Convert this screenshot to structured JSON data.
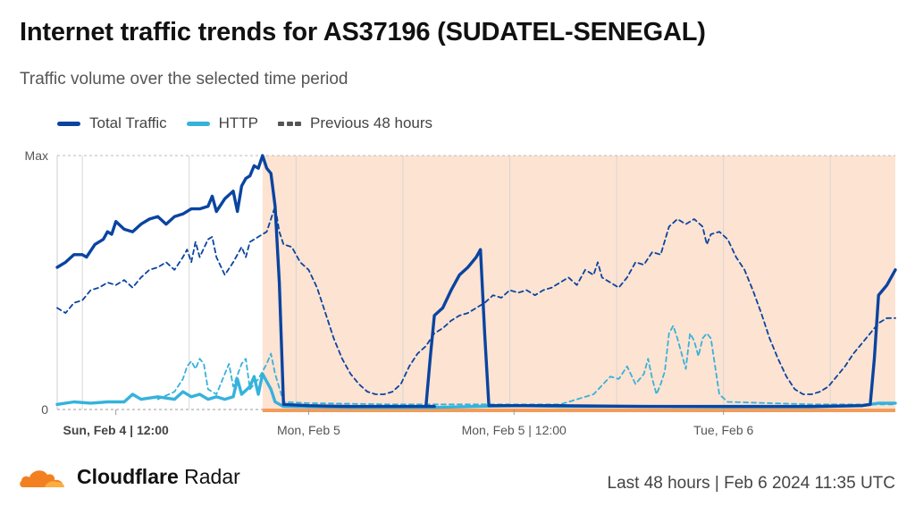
{
  "header": {
    "title": "Internet traffic trends for AS37196 (SUDATEL-SENEGAL)",
    "subtitle": "Traffic volume over the selected time period"
  },
  "footer": {
    "brand_bold": "Cloudflare",
    "brand_rest": " Radar",
    "timestamp": "Last 48 hours | Feb 6 2024 11:35 UTC"
  },
  "colors": {
    "total": "#0a44a0",
    "http": "#35b2dc",
    "previous": "#0a44a0",
    "highlight": "#fde3d2",
    "highlight_base": "#f39c5a"
  },
  "chart_data": {
    "type": "line",
    "y_ticks": [
      "Max",
      "0"
    ],
    "x_ticks": [
      {
        "label": "Sun, Feb 4 | 12:00",
        "bold": true,
        "t": 0.07
      },
      {
        "label": "Mon, Feb 5",
        "bold": false,
        "t": 0.3
      },
      {
        "label": "Mon, Feb 5 | 12:00",
        "bold": false,
        "t": 0.545
      },
      {
        "label": "Tue, Feb 6",
        "bold": false,
        "t": 0.795
      }
    ],
    "highlight_range": [
      0.245,
      1.0
    ],
    "ylim": [
      0,
      1
    ],
    "series": [
      {
        "name": "Total Traffic",
        "style": "solid",
        "points": [
          [
            0,
            0.56
          ],
          [
            0.01,
            0.58
          ],
          [
            0.02,
            0.61
          ],
          [
            0.03,
            0.61
          ],
          [
            0.035,
            0.6
          ],
          [
            0.045,
            0.65
          ],
          [
            0.055,
            0.67
          ],
          [
            0.06,
            0.7
          ],
          [
            0.065,
            0.69
          ],
          [
            0.07,
            0.74
          ],
          [
            0.08,
            0.71
          ],
          [
            0.09,
            0.7
          ],
          [
            0.1,
            0.73
          ],
          [
            0.11,
            0.75
          ],
          [
            0.12,
            0.76
          ],
          [
            0.13,
            0.73
          ],
          [
            0.14,
            0.76
          ],
          [
            0.15,
            0.77
          ],
          [
            0.16,
            0.79
          ],
          [
            0.17,
            0.79
          ],
          [
            0.18,
            0.8
          ],
          [
            0.185,
            0.84
          ],
          [
            0.19,
            0.78
          ],
          [
            0.2,
            0.83
          ],
          [
            0.21,
            0.86
          ],
          [
            0.215,
            0.78
          ],
          [
            0.22,
            0.88
          ],
          [
            0.225,
            0.91
          ],
          [
            0.23,
            0.92
          ],
          [
            0.235,
            0.96
          ],
          [
            0.24,
            0.95
          ],
          [
            0.245,
            1.0
          ],
          [
            0.25,
            0.95
          ],
          [
            0.255,
            0.93
          ],
          [
            0.26,
            0.8
          ],
          [
            0.265,
            0.5
          ],
          [
            0.27,
            0.02
          ],
          [
            0.3,
            0.015
          ],
          [
            0.35,
            0.012
          ],
          [
            0.45,
            0.012
          ],
          [
            0.44,
            0.012
          ],
          [
            0.445,
            0.2
          ],
          [
            0.45,
            0.37
          ],
          [
            0.46,
            0.4
          ],
          [
            0.47,
            0.47
          ],
          [
            0.48,
            0.53
          ],
          [
            0.49,
            0.56
          ],
          [
            0.5,
            0.6
          ],
          [
            0.505,
            0.63
          ],
          [
            0.51,
            0.3
          ],
          [
            0.515,
            0.015
          ],
          [
            0.6,
            0.015
          ],
          [
            0.7,
            0.012
          ],
          [
            0.8,
            0.012
          ],
          [
            0.9,
            0.012
          ],
          [
            0.96,
            0.015
          ],
          [
            0.97,
            0.02
          ],
          [
            0.975,
            0.2
          ],
          [
            0.98,
            0.45
          ],
          [
            0.985,
            0.47
          ],
          [
            0.99,
            0.49
          ],
          [
            0.995,
            0.52
          ],
          [
            1.0,
            0.55
          ]
        ]
      },
      {
        "name": "HTTP",
        "style": "solid",
        "points": [
          [
            0,
            0.02
          ],
          [
            0.02,
            0.03
          ],
          [
            0.04,
            0.025
          ],
          [
            0.06,
            0.03
          ],
          [
            0.08,
            0.03
          ],
          [
            0.09,
            0.06
          ],
          [
            0.1,
            0.04
          ],
          [
            0.12,
            0.05
          ],
          [
            0.14,
            0.04
          ],
          [
            0.15,
            0.07
          ],
          [
            0.16,
            0.05
          ],
          [
            0.17,
            0.06
          ],
          [
            0.18,
            0.04
          ],
          [
            0.19,
            0.05
          ],
          [
            0.2,
            0.04
          ],
          [
            0.21,
            0.05
          ],
          [
            0.215,
            0.12
          ],
          [
            0.22,
            0.06
          ],
          [
            0.23,
            0.09
          ],
          [
            0.235,
            0.13
          ],
          [
            0.24,
            0.06
          ],
          [
            0.245,
            0.14
          ],
          [
            0.255,
            0.08
          ],
          [
            0.26,
            0.03
          ],
          [
            0.27,
            0.012
          ],
          [
            0.35,
            0.008
          ],
          [
            0.45,
            0.008
          ],
          [
            0.5,
            0.012
          ],
          [
            0.55,
            0.015
          ],
          [
            0.6,
            0.012
          ],
          [
            0.7,
            0.012
          ],
          [
            0.8,
            0.01
          ],
          [
            0.9,
            0.01
          ],
          [
            0.96,
            0.015
          ],
          [
            0.98,
            0.025
          ],
          [
            1.0,
            0.025
          ]
        ]
      },
      {
        "name": "Previous 48 hours",
        "style": "dashed",
        "points": [
          [
            0,
            0.4
          ],
          [
            0.01,
            0.38
          ],
          [
            0.02,
            0.42
          ],
          [
            0.03,
            0.43
          ],
          [
            0.04,
            0.47
          ],
          [
            0.05,
            0.48
          ],
          [
            0.06,
            0.5
          ],
          [
            0.07,
            0.49
          ],
          [
            0.08,
            0.51
          ],
          [
            0.09,
            0.48
          ],
          [
            0.1,
            0.52
          ],
          [
            0.11,
            0.55
          ],
          [
            0.12,
            0.56
          ],
          [
            0.13,
            0.58
          ],
          [
            0.14,
            0.55
          ],
          [
            0.15,
            0.6
          ],
          [
            0.155,
            0.63
          ],
          [
            0.16,
            0.58
          ],
          [
            0.165,
            0.66
          ],
          [
            0.17,
            0.6
          ],
          [
            0.18,
            0.67
          ],
          [
            0.185,
            0.68
          ],
          [
            0.19,
            0.6
          ],
          [
            0.2,
            0.53
          ],
          [
            0.21,
            0.58
          ],
          [
            0.22,
            0.64
          ],
          [
            0.225,
            0.6
          ],
          [
            0.23,
            0.66
          ],
          [
            0.24,
            0.68
          ],
          [
            0.25,
            0.7
          ],
          [
            0.255,
            0.75
          ],
          [
            0.26,
            0.8
          ],
          [
            0.265,
            0.7
          ],
          [
            0.27,
            0.65
          ],
          [
            0.28,
            0.64
          ],
          [
            0.29,
            0.58
          ],
          [
            0.3,
            0.55
          ],
          [
            0.31,
            0.48
          ],
          [
            0.32,
            0.38
          ],
          [
            0.33,
            0.28
          ],
          [
            0.34,
            0.2
          ],
          [
            0.35,
            0.14
          ],
          [
            0.36,
            0.1
          ],
          [
            0.37,
            0.07
          ],
          [
            0.38,
            0.06
          ],
          [
            0.39,
            0.06
          ],
          [
            0.4,
            0.07
          ],
          [
            0.41,
            0.1
          ],
          [
            0.42,
            0.17
          ],
          [
            0.43,
            0.22
          ],
          [
            0.44,
            0.25
          ],
          [
            0.45,
            0.3
          ],
          [
            0.46,
            0.32
          ],
          [
            0.47,
            0.35
          ],
          [
            0.48,
            0.37
          ],
          [
            0.49,
            0.38
          ],
          [
            0.5,
            0.4
          ],
          [
            0.51,
            0.42
          ],
          [
            0.52,
            0.45
          ],
          [
            0.53,
            0.44
          ],
          [
            0.54,
            0.47
          ],
          [
            0.55,
            0.46
          ],
          [
            0.56,
            0.47
          ],
          [
            0.57,
            0.45
          ],
          [
            0.58,
            0.47
          ],
          [
            0.59,
            0.48
          ],
          [
            0.6,
            0.5
          ],
          [
            0.61,
            0.52
          ],
          [
            0.62,
            0.49
          ],
          [
            0.63,
            0.55
          ],
          [
            0.64,
            0.53
          ],
          [
            0.645,
            0.58
          ],
          [
            0.65,
            0.52
          ],
          [
            0.66,
            0.5
          ],
          [
            0.67,
            0.48
          ],
          [
            0.68,
            0.52
          ],
          [
            0.69,
            0.58
          ],
          [
            0.7,
            0.57
          ],
          [
            0.71,
            0.62
          ],
          [
            0.72,
            0.61
          ],
          [
            0.73,
            0.72
          ],
          [
            0.74,
            0.75
          ],
          [
            0.75,
            0.73
          ],
          [
            0.76,
            0.75
          ],
          [
            0.77,
            0.72
          ],
          [
            0.775,
            0.65
          ],
          [
            0.78,
            0.69
          ],
          [
            0.79,
            0.7
          ],
          [
            0.8,
            0.67
          ],
          [
            0.81,
            0.6
          ],
          [
            0.82,
            0.55
          ],
          [
            0.83,
            0.47
          ],
          [
            0.84,
            0.38
          ],
          [
            0.85,
            0.28
          ],
          [
            0.86,
            0.2
          ],
          [
            0.87,
            0.13
          ],
          [
            0.88,
            0.08
          ],
          [
            0.89,
            0.06
          ],
          [
            0.9,
            0.06
          ],
          [
            0.91,
            0.07
          ],
          [
            0.92,
            0.09
          ],
          [
            0.93,
            0.13
          ],
          [
            0.94,
            0.17
          ],
          [
            0.95,
            0.22
          ],
          [
            0.96,
            0.26
          ],
          [
            0.97,
            0.3
          ],
          [
            0.98,
            0.34
          ],
          [
            0.99,
            0.36
          ],
          [
            1.0,
            0.36
          ]
        ]
      },
      {
        "name": "HTTP previous",
        "style": "dashed",
        "points": [
          [
            0.12,
            0.04
          ],
          [
            0.14,
            0.07
          ],
          [
            0.15,
            0.12
          ],
          [
            0.155,
            0.17
          ],
          [
            0.16,
            0.19
          ],
          [
            0.165,
            0.16
          ],
          [
            0.17,
            0.2
          ],
          [
            0.175,
            0.18
          ],
          [
            0.18,
            0.08
          ],
          [
            0.19,
            0.06
          ],
          [
            0.2,
            0.14
          ],
          [
            0.205,
            0.18
          ],
          [
            0.21,
            0.09
          ],
          [
            0.22,
            0.18
          ],
          [
            0.225,
            0.2
          ],
          [
            0.23,
            0.08
          ],
          [
            0.24,
            0.12
          ],
          [
            0.25,
            0.18
          ],
          [
            0.255,
            0.22
          ],
          [
            0.26,
            0.14
          ],
          [
            0.27,
            0.03
          ],
          [
            0.3,
            0.025
          ],
          [
            0.4,
            0.02
          ],
          [
            0.5,
            0.02
          ],
          [
            0.6,
            0.02
          ],
          [
            0.64,
            0.06
          ],
          [
            0.66,
            0.13
          ],
          [
            0.67,
            0.12
          ],
          [
            0.68,
            0.17
          ],
          [
            0.69,
            0.1
          ],
          [
            0.7,
            0.14
          ],
          [
            0.705,
            0.2
          ],
          [
            0.71,
            0.12
          ],
          [
            0.715,
            0.06
          ],
          [
            0.72,
            0.1
          ],
          [
            0.725,
            0.15
          ],
          [
            0.73,
            0.3
          ],
          [
            0.735,
            0.33
          ],
          [
            0.74,
            0.28
          ],
          [
            0.745,
            0.22
          ],
          [
            0.75,
            0.16
          ],
          [
            0.755,
            0.3
          ],
          [
            0.76,
            0.27
          ],
          [
            0.765,
            0.21
          ],
          [
            0.77,
            0.28
          ],
          [
            0.775,
            0.3
          ],
          [
            0.78,
            0.28
          ],
          [
            0.79,
            0.06
          ],
          [
            0.8,
            0.03
          ],
          [
            0.9,
            0.02
          ],
          [
            1.0,
            0.02
          ]
        ]
      }
    ],
    "legend": [
      {
        "label": "Total Traffic",
        "style": "solid",
        "color": "#0a44a0"
      },
      {
        "label": "HTTP",
        "style": "solid",
        "color": "#35b2dc"
      },
      {
        "label": "Previous 48 hours",
        "style": "dashed",
        "color": "#555555"
      }
    ],
    "grid": true
  }
}
